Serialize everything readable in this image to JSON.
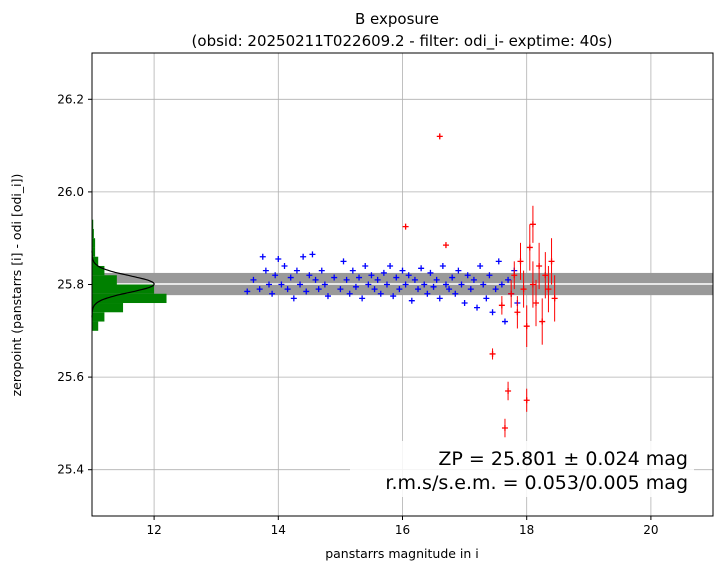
{
  "chart_data": {
    "type": "scatter",
    "title": "B exposure",
    "subtitle": "(obsid: 20250211T022609.2 - filter: odi_i- exptime: 40s)",
    "xlabel": "panstarrs magnitude in i",
    "ylabel": "zeropoint (panstarrs [i] - odi [odi_i])",
    "xlim": [
      11,
      21
    ],
    "ylim": [
      25.3,
      26.3
    ],
    "xticks": [
      12,
      14,
      16,
      18,
      20
    ],
    "yticks": [
      25.4,
      25.6,
      25.8,
      26.0,
      26.2
    ],
    "grid": true,
    "zeropoint": {
      "value": 25.801,
      "band_low": 25.777,
      "band_high": 25.825
    },
    "annotations": [
      "ZP = 25.801 ± 0.024 mag",
      "r.m.s/s.e.m. = 0.053/0.005 mag"
    ],
    "colors": {
      "used": "#0000ff",
      "rejected": "#ff0000",
      "histogram": "#008000",
      "band": "#999999",
      "gaussian": "#000000"
    },
    "histogram": {
      "edges": [
        25.7,
        25.72,
        25.74,
        25.76,
        25.78,
        25.8,
        25.82,
        25.84,
        25.86,
        25.88,
        25.9,
        25.92,
        25.94
      ],
      "counts_x": [
        11.1,
        11.2,
        11.5,
        12.2,
        12.0,
        11.4,
        11.2,
        11.1,
        11.05,
        11.05,
        11.03,
        11.02
      ]
    },
    "gaussian": {
      "mu": 25.801,
      "sigma": 0.018,
      "peak_x": 12.0
    },
    "series": [
      {
        "name": "used",
        "points": [
          [
            13.5,
            25.785
          ],
          [
            13.6,
            25.81
          ],
          [
            13.7,
            25.79
          ],
          [
            13.75,
            25.86
          ],
          [
            13.8,
            25.83
          ],
          [
            13.85,
            25.8
          ],
          [
            13.9,
            25.78
          ],
          [
            13.95,
            25.82
          ],
          [
            14.0,
            25.855
          ],
          [
            14.05,
            25.8
          ],
          [
            14.1,
            25.84
          ],
          [
            14.15,
            25.79
          ],
          [
            14.2,
            25.815
          ],
          [
            14.25,
            25.77
          ],
          [
            14.3,
            25.83
          ],
          [
            14.35,
            25.8
          ],
          [
            14.4,
            25.86
          ],
          [
            14.45,
            25.785
          ],
          [
            14.5,
            25.82
          ],
          [
            14.55,
            25.865
          ],
          [
            14.6,
            25.81
          ],
          [
            14.65,
            25.79
          ],
          [
            14.7,
            25.83
          ],
          [
            14.75,
            25.8
          ],
          [
            14.8,
            25.775
          ],
          [
            14.9,
            25.815
          ],
          [
            15.0,
            25.79
          ],
          [
            15.05,
            25.85
          ],
          [
            15.1,
            25.81
          ],
          [
            15.15,
            25.78
          ],
          [
            15.2,
            25.83
          ],
          [
            15.25,
            25.795
          ],
          [
            15.3,
            25.815
          ],
          [
            15.35,
            25.77
          ],
          [
            15.4,
            25.84
          ],
          [
            15.45,
            25.8
          ],
          [
            15.5,
            25.82
          ],
          [
            15.55,
            25.79
          ],
          [
            15.6,
            25.81
          ],
          [
            15.65,
            25.78
          ],
          [
            15.7,
            25.825
          ],
          [
            15.75,
            25.8
          ],
          [
            15.8,
            25.84
          ],
          [
            15.85,
            25.775
          ],
          [
            15.9,
            25.815
          ],
          [
            15.95,
            25.79
          ],
          [
            16.0,
            25.83
          ],
          [
            16.05,
            25.8
          ],
          [
            16.1,
            25.82
          ],
          [
            16.15,
            25.765
          ],
          [
            16.2,
            25.81
          ],
          [
            16.25,
            25.79
          ],
          [
            16.3,
            25.835
          ],
          [
            16.35,
            25.8
          ],
          [
            16.4,
            25.78
          ],
          [
            16.45,
            25.825
          ],
          [
            16.5,
            25.795
          ],
          [
            16.55,
            25.81
          ],
          [
            16.6,
            25.77
          ],
          [
            16.65,
            25.84
          ],
          [
            16.7,
            25.8
          ],
          [
            16.75,
            25.79
          ],
          [
            16.8,
            25.815
          ],
          [
            16.85,
            25.78
          ],
          [
            16.9,
            25.83
          ],
          [
            16.95,
            25.8
          ],
          [
            17.0,
            25.76
          ],
          [
            17.05,
            25.82
          ],
          [
            17.1,
            25.79
          ],
          [
            17.15,
            25.81
          ],
          [
            17.2,
            25.75
          ],
          [
            17.25,
            25.84
          ],
          [
            17.3,
            25.8
          ],
          [
            17.35,
            25.77
          ],
          [
            17.4,
            25.82
          ],
          [
            17.45,
            25.74
          ],
          [
            17.5,
            25.79
          ],
          [
            17.55,
            25.85
          ],
          [
            17.6,
            25.8
          ],
          [
            17.65,
            25.72
          ],
          [
            17.7,
            25.81
          ],
          [
            17.75,
            25.78
          ],
          [
            17.8,
            25.83
          ],
          [
            17.85,
            25.76
          ]
        ]
      },
      {
        "name": "rejected",
        "points": [
          [
            16.05,
            25.925,
            0.004
          ],
          [
            16.6,
            26.12,
            0.004
          ],
          [
            16.7,
            25.885,
            0.006
          ],
          [
            17.45,
            25.65,
            0.012
          ],
          [
            17.6,
            25.755,
            0.02
          ],
          [
            17.65,
            25.49,
            0.02
          ],
          [
            17.7,
            25.57,
            0.02
          ],
          [
            17.75,
            25.78,
            0.03
          ],
          [
            17.8,
            25.82,
            0.03
          ],
          [
            17.85,
            25.74,
            0.035
          ],
          [
            17.9,
            25.85,
            0.04
          ],
          [
            17.95,
            25.79,
            0.04
          ],
          [
            18.0,
            25.71,
            0.045
          ],
          [
            18.0,
            25.55,
            0.025
          ],
          [
            18.05,
            25.88,
            0.05
          ],
          [
            18.1,
            25.8,
            0.05
          ],
          [
            18.1,
            25.93,
            0.04
          ],
          [
            18.15,
            25.76,
            0.05
          ],
          [
            18.2,
            25.84,
            0.05
          ],
          [
            18.25,
            25.72,
            0.05
          ],
          [
            18.3,
            25.82,
            0.05
          ],
          [
            18.35,
            25.79,
            0.05
          ],
          [
            18.4,
            25.85,
            0.05
          ],
          [
            18.45,
            25.77,
            0.05
          ]
        ]
      }
    ]
  }
}
